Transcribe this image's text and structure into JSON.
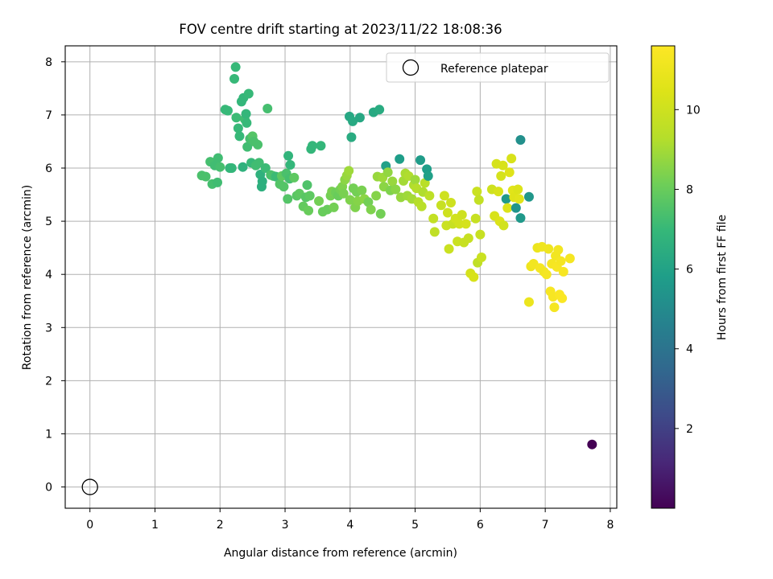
{
  "chart_data": {
    "type": "scatter",
    "title": "FOV centre drift starting at 2023/11/22 18:08:36",
    "xlabel": "Angular distance from reference (arcmin)",
    "ylabel": "Rotation from reference (arcmin)",
    "xlim": [
      -0.38,
      8.1
    ],
    "ylim": [
      -0.4,
      8.3
    ],
    "xticks": [
      0,
      1,
      2,
      3,
      4,
      5,
      6,
      7,
      8
    ],
    "yticks": [
      0,
      1,
      2,
      3,
      4,
      5,
      6,
      7,
      8
    ],
    "grid": true,
    "legend": {
      "position": "top-right",
      "entries": [
        "Reference platepar"
      ]
    },
    "colorbar": {
      "label": "Hours from first FF file",
      "range": [
        0.0,
        11.6
      ],
      "ticks": [
        2,
        4,
        6,
        8,
        10
      ],
      "colormap": "viridis"
    },
    "reference_point": {
      "x": 0,
      "y": 0,
      "label": "Reference platepar"
    },
    "series": [
      {
        "x_y_c": [
          [
            7.72,
            0.8,
            0.0
          ],
          [
            1.72,
            5.86,
            7.4
          ],
          [
            1.78,
            5.84,
            7.4
          ],
          [
            1.85,
            6.12,
            7.3
          ],
          [
            1.88,
            5.7,
            7.3
          ],
          [
            1.92,
            6.05,
            7.2
          ],
          [
            1.96,
            5.73,
            7.2
          ],
          [
            1.97,
            6.19,
            7.2
          ],
          [
            2.0,
            6.02,
            7.3
          ],
          [
            2.08,
            7.1,
            7.0
          ],
          [
            2.12,
            7.08,
            7.0
          ],
          [
            2.15,
            6.0,
            6.9
          ],
          [
            2.18,
            6.0,
            6.9
          ],
          [
            2.22,
            7.68,
            7.0
          ],
          [
            2.24,
            7.9,
            7.0
          ],
          [
            2.25,
            6.95,
            7.1
          ],
          [
            2.28,
            6.75,
            7.0
          ],
          [
            2.3,
            6.6,
            7.0
          ],
          [
            2.33,
            7.25,
            6.9
          ],
          [
            2.35,
            6.02,
            6.7
          ],
          [
            2.36,
            7.32,
            6.9
          ],
          [
            2.38,
            6.92,
            7.2
          ],
          [
            2.4,
            7.02,
            6.9
          ],
          [
            2.41,
            6.85,
            7.0
          ],
          [
            2.42,
            6.4,
            7.2
          ],
          [
            2.44,
            7.4,
            7.0
          ],
          [
            2.46,
            6.55,
            7.3
          ],
          [
            2.48,
            6.1,
            7.0
          ],
          [
            2.5,
            6.6,
            7.6
          ],
          [
            2.52,
            6.5,
            7.4
          ],
          [
            2.55,
            6.05,
            7.2
          ],
          [
            2.58,
            6.44,
            7.4
          ],
          [
            2.6,
            6.1,
            7.2
          ],
          [
            2.62,
            5.88,
            6.7
          ],
          [
            2.64,
            5.65,
            6.6
          ],
          [
            2.65,
            5.75,
            6.6
          ],
          [
            2.7,
            6.0,
            7.1
          ],
          [
            2.73,
            7.12,
            7.3
          ],
          [
            2.78,
            5.87,
            7.4
          ],
          [
            2.82,
            5.85,
            7.4
          ],
          [
            2.86,
            5.84,
            7.1
          ],
          [
            2.92,
            5.7,
            7.6
          ],
          [
            2.95,
            5.85,
            7.8
          ],
          [
            2.98,
            5.65,
            7.6
          ],
          [
            3.02,
            5.9,
            7.4
          ],
          [
            3.04,
            5.42,
            7.6
          ],
          [
            3.05,
            6.23,
            6.8
          ],
          [
            3.07,
            5.8,
            7.3
          ],
          [
            3.08,
            6.06,
            6.9
          ],
          [
            3.14,
            5.82,
            7.8
          ],
          [
            3.18,
            5.48,
            7.7
          ],
          [
            3.22,
            5.52,
            7.8
          ],
          [
            3.28,
            5.28,
            7.9
          ],
          [
            3.32,
            5.45,
            7.7
          ],
          [
            3.34,
            5.68,
            7.5
          ],
          [
            3.36,
            5.2,
            8.0
          ],
          [
            3.38,
            5.48,
            7.8
          ],
          [
            3.4,
            6.36,
            6.9
          ],
          [
            3.42,
            6.42,
            6.9
          ],
          [
            3.52,
            5.38,
            8.2
          ],
          [
            3.55,
            6.42,
            6.9
          ],
          [
            3.58,
            5.18,
            8.0
          ],
          [
            3.65,
            5.22,
            8.0
          ],
          [
            3.7,
            5.48,
            8.2
          ],
          [
            3.72,
            5.56,
            8.3
          ],
          [
            3.75,
            5.26,
            8.2
          ],
          [
            3.78,
            5.54,
            8.1
          ],
          [
            3.82,
            5.48,
            8.0
          ],
          [
            3.85,
            5.6,
            8.2
          ],
          [
            3.88,
            5.65,
            8.4
          ],
          [
            3.9,
            5.52,
            8.3
          ],
          [
            3.92,
            5.78,
            8.6
          ],
          [
            3.95,
            5.86,
            8.8
          ],
          [
            3.98,
            5.95,
            8.9
          ],
          [
            3.99,
            6.97,
            6.2
          ],
          [
            4.0,
            5.4,
            8.4
          ],
          [
            4.02,
            6.58,
            6.4
          ],
          [
            4.04,
            6.88,
            6.3
          ],
          [
            4.05,
            5.62,
            8.2
          ],
          [
            4.08,
            5.26,
            8.4
          ],
          [
            4.1,
            5.55,
            8.2
          ],
          [
            4.12,
            5.38,
            8.5
          ],
          [
            4.15,
            6.95,
            6.2
          ],
          [
            4.18,
            5.58,
            8.3
          ],
          [
            4.22,
            5.42,
            8.6
          ],
          [
            4.28,
            5.36,
            8.2
          ],
          [
            4.32,
            5.22,
            8.4
          ],
          [
            4.36,
            7.05,
            6.3
          ],
          [
            4.4,
            5.48,
            8.5
          ],
          [
            4.42,
            5.84,
            8.8
          ],
          [
            4.45,
            7.1,
            6.4
          ],
          [
            4.47,
            5.14,
            8.2
          ],
          [
            4.5,
            5.82,
            8.9
          ],
          [
            4.52,
            5.65,
            8.6
          ],
          [
            4.55,
            6.04,
            5.9
          ],
          [
            4.58,
            5.92,
            8.7
          ],
          [
            4.62,
            5.58,
            8.4
          ],
          [
            4.65,
            5.75,
            8.8
          ],
          [
            4.7,
            5.6,
            8.6
          ],
          [
            4.76,
            6.17,
            5.8
          ],
          [
            4.78,
            5.45,
            8.8
          ],
          [
            4.82,
            5.76,
            9.0
          ],
          [
            4.85,
            5.9,
            9.1
          ],
          [
            4.88,
            5.48,
            8.9
          ],
          [
            4.9,
            5.85,
            9.2
          ],
          [
            4.95,
            5.42,
            9.0
          ],
          [
            4.98,
            5.68,
            9.2
          ],
          [
            5.0,
            5.78,
            8.9
          ],
          [
            5.02,
            5.62,
            9.3
          ],
          [
            5.05,
            5.36,
            9.3
          ],
          [
            5.08,
            6.15,
            5.7
          ],
          [
            5.1,
            5.28,
            9.4
          ],
          [
            5.12,
            5.55,
            9.2
          ],
          [
            5.15,
            5.72,
            9.4
          ],
          [
            5.18,
            5.98,
            5.8
          ],
          [
            5.2,
            5.85,
            5.9
          ],
          [
            5.22,
            5.48,
            9.5
          ],
          [
            5.28,
            5.05,
            9.7
          ],
          [
            5.3,
            4.8,
            9.6
          ],
          [
            5.4,
            5.3,
            9.8
          ],
          [
            5.45,
            5.48,
            10.0
          ],
          [
            5.48,
            4.92,
            9.9
          ],
          [
            5.5,
            5.16,
            10.0
          ],
          [
            5.52,
            4.48,
            9.9
          ],
          [
            5.55,
            5.35,
            10.0
          ],
          [
            5.58,
            4.95,
            9.8
          ],
          [
            5.62,
            5.05,
            10.1
          ],
          [
            5.65,
            4.62,
            9.9
          ],
          [
            5.68,
            4.95,
            10.1
          ],
          [
            5.72,
            5.12,
            10.0
          ],
          [
            5.75,
            4.6,
            9.8
          ],
          [
            5.78,
            4.95,
            10.2
          ],
          [
            5.82,
            4.68,
            9.8
          ],
          [
            5.85,
            4.02,
            10.2
          ],
          [
            5.9,
            3.95,
            10.3
          ],
          [
            5.93,
            5.05,
            9.8
          ],
          [
            5.95,
            5.56,
            9.9
          ],
          [
            5.96,
            4.22,
            9.6
          ],
          [
            5.98,
            5.4,
            9.7
          ],
          [
            6.0,
            4.75,
            9.8
          ],
          [
            6.02,
            4.32,
            9.9
          ],
          [
            6.18,
            5.6,
            10.0
          ],
          [
            6.22,
            5.1,
            10.3
          ],
          [
            6.25,
            6.08,
            10.2
          ],
          [
            6.28,
            5.56,
            10.3
          ],
          [
            6.3,
            5.0,
            10.4
          ],
          [
            6.32,
            5.85,
            10.2
          ],
          [
            6.35,
            6.05,
            10.3
          ],
          [
            6.36,
            4.92,
            10.1
          ],
          [
            6.4,
            5.42,
            5.6
          ],
          [
            6.42,
            5.25,
            10.4
          ],
          [
            6.45,
            5.92,
            10.5
          ],
          [
            6.48,
            6.18,
            10.3
          ],
          [
            6.5,
            5.58,
            10.6
          ],
          [
            6.52,
            5.45,
            10.5
          ],
          [
            6.55,
            5.25,
            5.4
          ],
          [
            6.58,
            5.6,
            10.4
          ],
          [
            6.6,
            5.42,
            10.6
          ],
          [
            6.62,
            5.06,
            5.6
          ],
          [
            6.62,
            6.53,
            5.2
          ],
          [
            6.75,
            5.46,
            5.5
          ],
          [
            6.75,
            3.48,
            11.0
          ],
          [
            6.78,
            4.15,
            11.1
          ],
          [
            6.82,
            4.2,
            11.2
          ],
          [
            6.88,
            4.5,
            11.0
          ],
          [
            6.92,
            4.12,
            11.3
          ],
          [
            6.95,
            4.52,
            11.1
          ],
          [
            6.98,
            4.05,
            11.2
          ],
          [
            7.02,
            4.0,
            11.3
          ],
          [
            7.05,
            4.48,
            11.1
          ],
          [
            7.08,
            3.68,
            11.4
          ],
          [
            7.1,
            4.2,
            11.3
          ],
          [
            7.12,
            3.58,
            11.4
          ],
          [
            7.14,
            3.38,
            11.3
          ],
          [
            7.16,
            4.35,
            11.2
          ],
          [
            7.18,
            4.14,
            11.4
          ],
          [
            7.2,
            4.46,
            11.2
          ],
          [
            7.22,
            3.62,
            11.5
          ],
          [
            7.24,
            4.25,
            11.3
          ],
          [
            7.26,
            3.55,
            11.5
          ],
          [
            7.28,
            4.05,
            11.4
          ],
          [
            7.38,
            4.3,
            11.3
          ]
        ]
      }
    ]
  }
}
